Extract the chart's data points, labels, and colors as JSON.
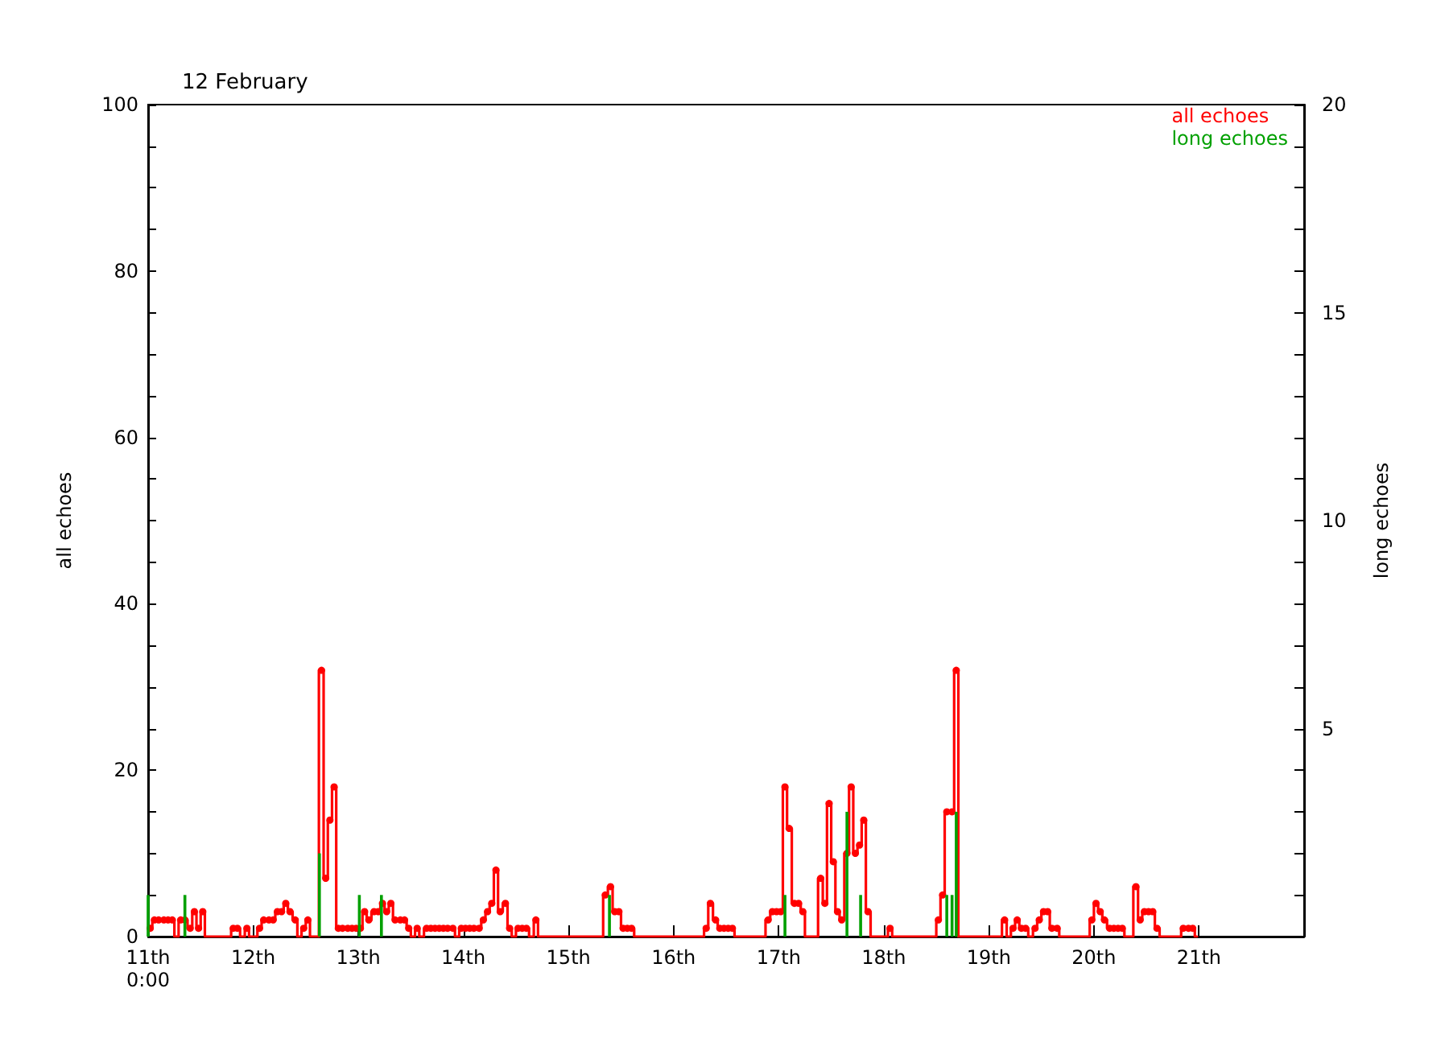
{
  "chart_data": {
    "type": "step",
    "title": "12 February",
    "ylabel": "all echoes",
    "y2label": "long echoes",
    "xlim": [
      11,
      22
    ],
    "xticks": [
      {
        "value": 11,
        "label": "11th\n0:00"
      },
      {
        "value": 12,
        "label": "12th"
      },
      {
        "value": 13,
        "label": "13th"
      },
      {
        "value": 14,
        "label": "14th"
      },
      {
        "value": 15,
        "label": "15th"
      },
      {
        "value": 16,
        "label": "16th"
      },
      {
        "value": 17,
        "label": "17th"
      },
      {
        "value": 18,
        "label": "18th"
      },
      {
        "value": 19,
        "label": "19th"
      },
      {
        "value": 20,
        "label": "20th"
      },
      {
        "value": 21,
        "label": "21th"
      }
    ],
    "ylim": [
      0,
      100
    ],
    "yticks": [
      0,
      {
        "value": 5,
        "label": null
      },
      {
        "value": 10,
        "label": null
      },
      {
        "value": 15,
        "label": null
      },
      20,
      {
        "value": 25,
        "label": null
      },
      {
        "value": 30,
        "label": null
      },
      {
        "value": 35,
        "label": null
      },
      40,
      {
        "value": 45,
        "label": null
      },
      {
        "value": 50,
        "label": null
      },
      {
        "value": 55,
        "label": null
      },
      60,
      {
        "value": 65,
        "label": null
      },
      {
        "value": 70,
        "label": null
      },
      {
        "value": 75,
        "label": null
      },
      80,
      {
        "value": 85,
        "label": null
      },
      {
        "value": 90,
        "label": null
      },
      {
        "value": 95,
        "label": null
      },
      100
    ],
    "y2lim": [
      0,
      20
    ],
    "y2ticks": [
      {
        "value": 0,
        "label": null
      },
      {
        "value": 1,
        "label": null
      },
      {
        "value": 2,
        "label": null
      },
      {
        "value": 3,
        "label": null
      },
      {
        "value": 4,
        "label": null
      },
      5,
      {
        "value": 6,
        "label": null
      },
      {
        "value": 7,
        "label": null
      },
      {
        "value": 8,
        "label": null
      },
      {
        "value": 9,
        "label": null
      },
      10,
      {
        "value": 11,
        "label": null
      },
      {
        "value": 12,
        "label": null
      },
      {
        "value": 13,
        "label": null
      },
      {
        "value": 14,
        "label": null
      },
      15,
      {
        "value": 16,
        "label": null
      },
      {
        "value": 17,
        "label": null
      },
      {
        "value": 18,
        "label": null
      },
      {
        "value": 19,
        "label": null
      },
      20
    ],
    "legend": "top right",
    "marker": "circle",
    "line_style": "solid",
    "series": [
      {
        "name": "all echoes",
        "color": "#ff0000",
        "x": [
          11.02,
          11.06,
          11.1,
          11.15,
          11.19,
          11.23,
          11.27,
          11.31,
          11.35,
          11.4,
          11.44,
          11.48,
          11.52,
          11.56,
          11.77,
          11.81,
          11.85,
          11.9,
          11.94,
          11.98,
          12.02,
          12.06,
          12.1,
          12.15,
          12.19,
          12.23,
          12.27,
          12.31,
          12.35,
          12.4,
          12.44,
          12.48,
          12.52,
          12.56,
          12.6,
          12.65,
          12.69,
          12.73,
          12.77,
          12.81,
          12.85,
          12.9,
          12.94,
          12.98,
          13.02,
          13.06,
          13.1,
          13.15,
          13.19,
          13.23,
          13.27,
          13.31,
          13.35,
          13.4,
          13.44,
          13.48,
          13.52,
          13.56,
          13.6,
          13.65,
          13.69,
          13.73,
          13.77,
          13.81,
          13.85,
          13.9,
          13.94,
          13.98,
          14.02,
          14.06,
          14.1,
          14.15,
          14.19,
          14.23,
          14.27,
          14.31,
          14.35,
          14.4,
          14.44,
          14.48,
          14.52,
          14.56,
          14.6,
          14.65,
          14.69,
          14.73,
          15.31,
          15.35,
          15.4,
          15.44,
          15.48,
          15.52,
          15.56,
          15.6,
          15.65,
          16.27,
          16.31,
          16.35,
          16.4,
          16.44,
          16.48,
          16.52,
          16.56,
          16.6,
          16.85,
          16.9,
          16.94,
          16.98,
          17.02,
          17.06,
          17.1,
          17.15,
          17.19,
          17.23,
          17.27,
          17.35,
          17.4,
          17.44,
          17.48,
          17.52,
          17.56,
          17.6,
          17.65,
          17.69,
          17.73,
          17.77,
          17.81,
          17.85,
          17.9,
          18.02,
          18.06,
          18.1,
          18.48,
          18.52,
          18.56,
          18.6,
          18.65,
          18.69,
          18.73,
          19.1,
          19.15,
          19.19,
          19.23,
          19.27,
          19.31,
          19.35,
          19.4,
          19.44,
          19.48,
          19.52,
          19.56,
          19.6,
          19.65,
          19.69,
          19.94,
          19.98,
          20.02,
          20.06,
          20.1,
          20.15,
          20.19,
          20.23,
          20.27,
          20.31,
          20.35,
          20.4,
          20.44,
          20.48,
          20.52,
          20.56,
          20.6,
          20.65,
          20.81,
          20.85,
          20.9,
          20.94,
          20.98
        ],
        "values": [
          1,
          2,
          2,
          2,
          2,
          2,
          0,
          2,
          2,
          1,
          3,
          1,
          3,
          0,
          0,
          1,
          1,
          0,
          1,
          0,
          0,
          1,
          2,
          2,
          2,
          3,
          3,
          4,
          3,
          2,
          0,
          1,
          2,
          0,
          0,
          32,
          7,
          14,
          18,
          1,
          1,
          1,
          1,
          1,
          1,
          3,
          2,
          3,
          3,
          4,
          3,
          4,
          2,
          2,
          2,
          1,
          0,
          1,
          0,
          1,
          1,
          1,
          1,
          1,
          1,
          1,
          0,
          1,
          1,
          1,
          1,
          1,
          2,
          3,
          4,
          8,
          3,
          4,
          1,
          0,
          1,
          1,
          1,
          0,
          2,
          0,
          0,
          5,
          6,
          3,
          3,
          1,
          1,
          1,
          0,
          0,
          1,
          4,
          2,
          1,
          1,
          1,
          1,
          0,
          0,
          2,
          3,
          3,
          3,
          18,
          13,
          4,
          4,
          3,
          0,
          0,
          7,
          4,
          16,
          9,
          3,
          2,
          10,
          18,
          10,
          11,
          14,
          3,
          0,
          0,
          1,
          0,
          0,
          2,
          5,
          15,
          15,
          32,
          0,
          0,
          2,
          0,
          1,
          2,
          1,
          1,
          0,
          1,
          2,
          3,
          3,
          1,
          1,
          0,
          0,
          2,
          4,
          3,
          2,
          1,
          1,
          1,
          1,
          0,
          0,
          6,
          2,
          3,
          3,
          3,
          1,
          0,
          0,
          1,
          1,
          1,
          0
        ]
      },
      {
        "name": "long echoes",
        "color": "#00a000",
        "type": "bar",
        "axis": "y2",
        "x": [
          11.0,
          11.35,
          12.63,
          13.01,
          13.22,
          15.39,
          17.06,
          17.65,
          17.78,
          18.6,
          18.65,
          18.69
        ],
        "values": [
          1,
          1,
          2,
          1,
          1,
          1,
          1,
          3,
          1,
          1,
          1,
          3
        ]
      }
    ]
  }
}
